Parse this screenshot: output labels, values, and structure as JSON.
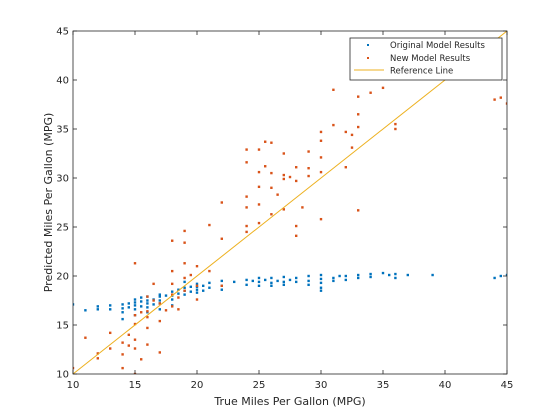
{
  "chart_data": {
    "type": "scatter",
    "title": "",
    "xlabel": "True Miles Per Gallon (MPG)",
    "ylabel": "Predicted Miles Per Gallon (MPG)",
    "xlim": [
      10,
      45
    ],
    "ylim": [
      10,
      45
    ],
    "xticks": [
      10,
      15,
      20,
      25,
      30,
      35,
      40,
      45
    ],
    "yticks": [
      10,
      15,
      20,
      25,
      30,
      35,
      40,
      45
    ],
    "grid": false,
    "legend_position": "top-right",
    "series": [
      {
        "name": "Original Model Results",
        "color": "#0072BD",
        "marker": "point",
        "points": [
          [
            10,
            17.1
          ],
          [
            11,
            16.5
          ],
          [
            12,
            16.6
          ],
          [
            12,
            16.9
          ],
          [
            13,
            17.0
          ],
          [
            13,
            16.6
          ],
          [
            14,
            17.1
          ],
          [
            14,
            16.7
          ],
          [
            14,
            16.3
          ],
          [
            14,
            15.6
          ],
          [
            14.5,
            17.2
          ],
          [
            14.5,
            16.8
          ],
          [
            15,
            17.6
          ],
          [
            15,
            17.3
          ],
          [
            15,
            17.0
          ],
          [
            15,
            16.6
          ],
          [
            15,
            16.0
          ],
          [
            15.5,
            17.8
          ],
          [
            15.5,
            17.4
          ],
          [
            15.5,
            16.9
          ],
          [
            16,
            17.9
          ],
          [
            16,
            17.5
          ],
          [
            16,
            17.2
          ],
          [
            16,
            16.8
          ],
          [
            16,
            16.3
          ],
          [
            16.5,
            17.6
          ],
          [
            16.5,
            17.1
          ],
          [
            17,
            18.1
          ],
          [
            17,
            17.9
          ],
          [
            17,
            17.5
          ],
          [
            17,
            17.2
          ],
          [
            17,
            16.6
          ],
          [
            17.5,
            18.0
          ],
          [
            18,
            18.4
          ],
          [
            18,
            18.0
          ],
          [
            18,
            17.6
          ],
          [
            18,
            17.0
          ],
          [
            18.5,
            18.6
          ],
          [
            18.5,
            18.2
          ],
          [
            19,
            18.8
          ],
          [
            19,
            18.5
          ],
          [
            19,
            18.1
          ],
          [
            19,
            19.4
          ],
          [
            19.5,
            18.9
          ],
          [
            19.5,
            18.4
          ],
          [
            20,
            19.2
          ],
          [
            20,
            18.9
          ],
          [
            20,
            18.6
          ],
          [
            20,
            18.3
          ],
          [
            20.5,
            19.0
          ],
          [
            20.5,
            18.5
          ],
          [
            21,
            19.3
          ],
          [
            21,
            18.8
          ],
          [
            22,
            19.5
          ],
          [
            22,
            19.0
          ],
          [
            22,
            18.6
          ],
          [
            23,
            19.4
          ],
          [
            24,
            19.6
          ],
          [
            24,
            19.1
          ],
          [
            24.5,
            19.5
          ],
          [
            25,
            19.8
          ],
          [
            25,
            19.4
          ],
          [
            25,
            19.0
          ],
          [
            25.5,
            19.6
          ],
          [
            26,
            19.8
          ],
          [
            26,
            19.3
          ],
          [
            26,
            19.0
          ],
          [
            26.5,
            19.5
          ],
          [
            27,
            19.9
          ],
          [
            27,
            19.4
          ],
          [
            27,
            19.1
          ],
          [
            27.5,
            19.6
          ],
          [
            28,
            19.8
          ],
          [
            28,
            19.4
          ],
          [
            29,
            20.0
          ],
          [
            29,
            19.5
          ],
          [
            29,
            19.1
          ],
          [
            30,
            20.1
          ],
          [
            30,
            19.7
          ],
          [
            30,
            19.3
          ],
          [
            30,
            18.8
          ],
          [
            30,
            18.5
          ],
          [
            31,
            19.8
          ],
          [
            31,
            19.5
          ],
          [
            31.5,
            20.0
          ],
          [
            32,
            20.0
          ],
          [
            32,
            19.6
          ],
          [
            33,
            20.1
          ],
          [
            33,
            19.8
          ],
          [
            34,
            20.2
          ],
          [
            34,
            19.9
          ],
          [
            35,
            20.3
          ],
          [
            35.5,
            20.1
          ],
          [
            36,
            20.2
          ],
          [
            36,
            19.8
          ],
          [
            37,
            20.1
          ],
          [
            39,
            20.1
          ],
          [
            44,
            19.8
          ],
          [
            44.5,
            20.0
          ],
          [
            45,
            20.1
          ]
        ]
      },
      {
        "name": "New Model Results",
        "color": "#D95319",
        "marker": "point",
        "points": [
          [
            10,
            10.6
          ],
          [
            11,
            13.7
          ],
          [
            12,
            12.1
          ],
          [
            12,
            11.6
          ],
          [
            13,
            14.2
          ],
          [
            13,
            12.6
          ],
          [
            14,
            13.2
          ],
          [
            14,
            12.0
          ],
          [
            14,
            10.6
          ],
          [
            14.5,
            14.0
          ],
          [
            14.5,
            12.9
          ],
          [
            15,
            21.3
          ],
          [
            15,
            16.0
          ],
          [
            15,
            15.1
          ],
          [
            15,
            13.5
          ],
          [
            15,
            12.6
          ],
          [
            15,
            10.0
          ],
          [
            15.5,
            16.3
          ],
          [
            15.5,
            11.5
          ],
          [
            16,
            17.9
          ],
          [
            16,
            16.4
          ],
          [
            16,
            15.8
          ],
          [
            16,
            14.7
          ],
          [
            16,
            13.0
          ],
          [
            16.5,
            19.2
          ],
          [
            16.5,
            17.5
          ],
          [
            17,
            17.2
          ],
          [
            17,
            15.4
          ],
          [
            17,
            12.2
          ],
          [
            17.5,
            16.5
          ],
          [
            18,
            23.6
          ],
          [
            18,
            20.5
          ],
          [
            18,
            19.2
          ],
          [
            18,
            18.1
          ],
          [
            18,
            16.9
          ],
          [
            18.5,
            17.8
          ],
          [
            18.5,
            16.6
          ],
          [
            19,
            24.6
          ],
          [
            19,
            23.4
          ],
          [
            19,
            21.3
          ],
          [
            19,
            19.8
          ],
          [
            19,
            18.5
          ],
          [
            19.5,
            20.1
          ],
          [
            20,
            21.0
          ],
          [
            20,
            19.0
          ],
          [
            20,
            17.6
          ],
          [
            21,
            25.2
          ],
          [
            21,
            20.5
          ],
          [
            22,
            27.5
          ],
          [
            22,
            23.8
          ],
          [
            22,
            19.0
          ],
          [
            24,
            32.9
          ],
          [
            24,
            31.6
          ],
          [
            24,
            28.1
          ],
          [
            24,
            27.0
          ],
          [
            24,
            25.1
          ],
          [
            24,
            24.5
          ],
          [
            25,
            32.9
          ],
          [
            25,
            30.6
          ],
          [
            25,
            29.1
          ],
          [
            25,
            27.3
          ],
          [
            25,
            25.4
          ],
          [
            25.5,
            33.7
          ],
          [
            25.5,
            31.2
          ],
          [
            26,
            33.6
          ],
          [
            26,
            30.5
          ],
          [
            26,
            29.0
          ],
          [
            26,
            26.3
          ],
          [
            26.5,
            28.3
          ],
          [
            27,
            32.5
          ],
          [
            27,
            30.3
          ],
          [
            27,
            29.9
          ],
          [
            27,
            26.8
          ],
          [
            27.5,
            30.1
          ],
          [
            28,
            31.1
          ],
          [
            28,
            29.7
          ],
          [
            28,
            25.1
          ],
          [
            28,
            24.1
          ],
          [
            28.5,
            27.0
          ],
          [
            29,
            32.7
          ],
          [
            29,
            31.0
          ],
          [
            29,
            30.2
          ],
          [
            30,
            34.7
          ],
          [
            30,
            33.8
          ],
          [
            30,
            32.1
          ],
          [
            30,
            30.6
          ],
          [
            30,
            25.8
          ],
          [
            31,
            39.0
          ],
          [
            31,
            35.4
          ],
          [
            32,
            34.7
          ],
          [
            32,
            31.1
          ],
          [
            32.5,
            34.4
          ],
          [
            32.5,
            33.1
          ],
          [
            33,
            38.3
          ],
          [
            33,
            36.5
          ],
          [
            33,
            35.2
          ],
          [
            33,
            26.7
          ],
          [
            34,
            38.7
          ],
          [
            35,
            39.2
          ],
          [
            36,
            35.5
          ],
          [
            36,
            35.0
          ],
          [
            38,
            40.8
          ],
          [
            44,
            38.0
          ],
          [
            44.5,
            38.2
          ],
          [
            45,
            37.6
          ]
        ]
      },
      {
        "name": "Reference Line",
        "color": "#EDB120",
        "marker": "line",
        "points": [
          [
            10,
            10
          ],
          [
            45,
            45
          ]
        ]
      }
    ]
  }
}
